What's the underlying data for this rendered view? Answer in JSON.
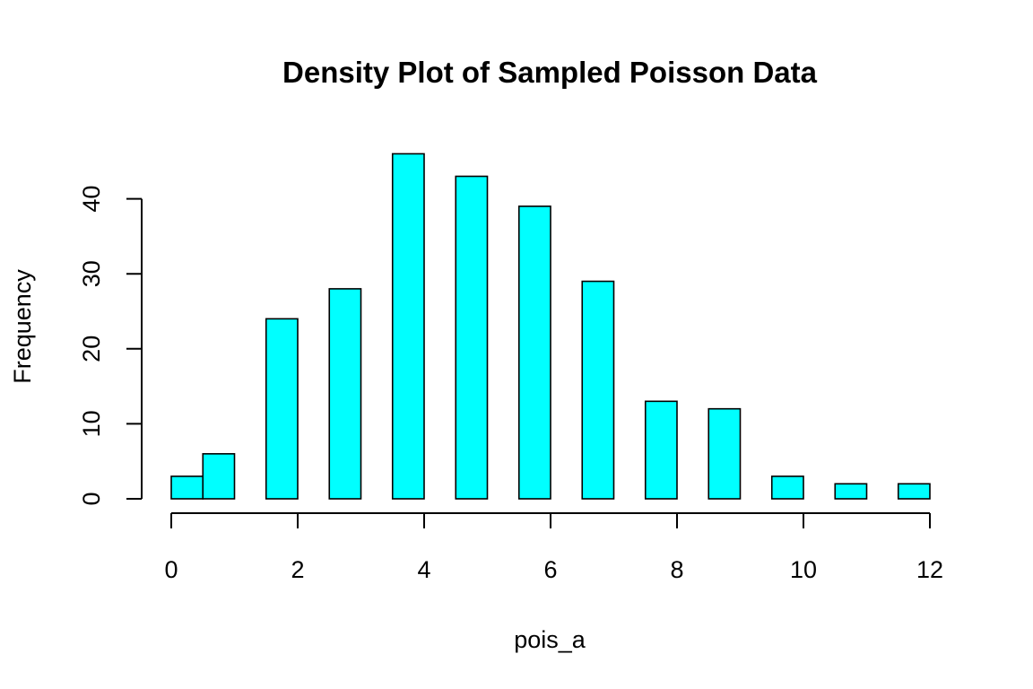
{
  "chart_data": {
    "type": "bar",
    "title": "Density Plot of Sampled Poisson Data",
    "xlabel": "pois_a",
    "ylabel": "Frequency",
    "bins": [
      {
        "x0": 0.0,
        "x1": 0.5,
        "count": 3
      },
      {
        "x0": 0.5,
        "x1": 1.0,
        "count": 6
      },
      {
        "x0": 1.5,
        "x1": 2.0,
        "count": 24
      },
      {
        "x0": 2.5,
        "x1": 3.0,
        "count": 28
      },
      {
        "x0": 3.5,
        "x1": 4.0,
        "count": 46
      },
      {
        "x0": 4.5,
        "x1": 5.0,
        "count": 43
      },
      {
        "x0": 5.5,
        "x1": 6.0,
        "count": 39
      },
      {
        "x0": 6.5,
        "x1": 7.0,
        "count": 29
      },
      {
        "x0": 7.5,
        "x1": 8.0,
        "count": 13
      },
      {
        "x0": 8.5,
        "x1": 9.0,
        "count": 12
      },
      {
        "x0": 9.5,
        "x1": 10.0,
        "count": 3
      },
      {
        "x0": 10.5,
        "x1": 11.0,
        "count": 2
      },
      {
        "x0": 11.5,
        "x1": 12.0,
        "count": 2
      }
    ],
    "xlim": [
      0,
      12
    ],
    "ylim": [
      0,
      46
    ],
    "xticks": [
      0,
      2,
      4,
      6,
      8,
      10,
      12
    ],
    "yticks": [
      0,
      10,
      20,
      30,
      40
    ],
    "bar_color": "#00FFFF",
    "border_color": "#000000",
    "grid": false
  }
}
